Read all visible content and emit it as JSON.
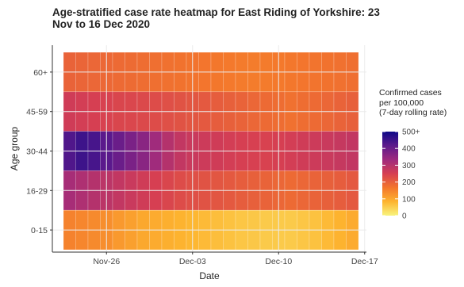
{
  "chart_data": {
    "type": "heatmap",
    "title_lines": [
      "Age-stratified case rate heatmap for East Riding of Yorkshire: 23",
      "Nov to 16 Dec 2020"
    ],
    "xlabel": "Date",
    "ylabel": "Age group",
    "x_start": "2020-11-23",
    "x_end": "2020-12-16",
    "x_ticks": [
      {
        "date": "2020-11-26",
        "label": "Nov-26"
      },
      {
        "date": "2020-12-03",
        "label": "Dec-03"
      },
      {
        "date": "2020-12-10",
        "label": "Dec-10"
      },
      {
        "date": "2020-12-17",
        "label": "Dec-17"
      }
    ],
    "dates": [
      "2020-11-23",
      "2020-11-24",
      "2020-11-25",
      "2020-11-26",
      "2020-11-27",
      "2020-11-28",
      "2020-11-29",
      "2020-11-30",
      "2020-12-01",
      "2020-12-02",
      "2020-12-03",
      "2020-12-04",
      "2020-12-05",
      "2020-12-06",
      "2020-12-07",
      "2020-12-08",
      "2020-12-09",
      "2020-12-10",
      "2020-12-11",
      "2020-12-12",
      "2020-12-13",
      "2020-12-14",
      "2020-12-15",
      "2020-12-16"
    ],
    "age_groups": [
      "60+",
      "45-59",
      "30-44",
      "16-29",
      "0-15"
    ],
    "values": {
      "60+": [
        195,
        192,
        190,
        188,
        185,
        183,
        180,
        178,
        175,
        172,
        170,
        168,
        165,
        162,
        160,
        158,
        160,
        162,
        165,
        168,
        170,
        172,
        175,
        178
      ],
      "45-59": [
        260,
        255,
        250,
        245,
        240,
        238,
        235,
        230,
        225,
        220,
        215,
        210,
        205,
        200,
        195,
        190,
        185,
        180,
        175,
        180,
        185,
        190,
        195,
        200
      ],
      "30-44": [
        430,
        450,
        440,
        420,
        400,
        380,
        360,
        330,
        300,
        280,
        270,
        265,
        260,
        255,
        250,
        248,
        245,
        250,
        255,
        260,
        265,
        270,
        275,
        280
      ],
      "16-29": [
        320,
        310,
        300,
        290,
        280,
        270,
        260,
        250,
        240,
        230,
        225,
        220,
        215,
        210,
        205,
        200,
        195,
        190,
        185,
        190,
        195,
        200,
        205,
        210
      ],
      "0-15": [
        150,
        145,
        140,
        135,
        120,
        110,
        100,
        95,
        90,
        85,
        80,
        75,
        70,
        65,
        60,
        58,
        55,
        55,
        55,
        60,
        65,
        75,
        85,
        95
      ]
    },
    "color_scale": {
      "min": 0,
      "max": 500,
      "colors": [
        "#f8f47e",
        "#fdb42f",
        "#f3762c",
        "#d63f52",
        "#9e2a7e",
        "#5d1a8c",
        "#0d0887"
      ]
    },
    "legend": {
      "title_lines": [
        "Confirmed cases",
        "per 100,000",
        "(7-day rolling rate)"
      ],
      "ticks": [
        {
          "value": 0,
          "label": "0"
        },
        {
          "value": 100,
          "label": "100"
        },
        {
          "value": 200,
          "label": "200"
        },
        {
          "value": 300,
          "label": "300"
        },
        {
          "value": 400,
          "label": "400"
        },
        {
          "value": 500,
          "label": "500+"
        }
      ],
      "position": "right"
    }
  }
}
